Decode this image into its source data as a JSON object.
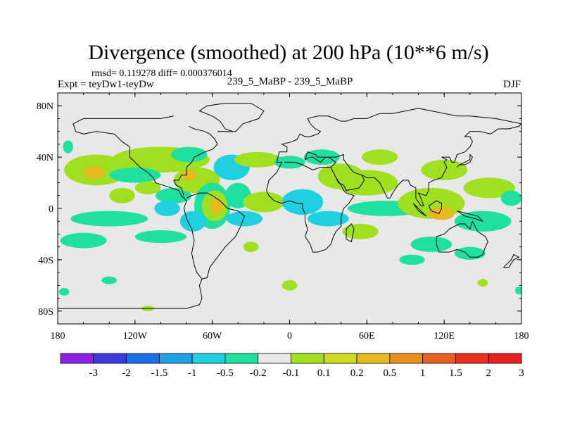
{
  "chart_data": {
    "type": "heatmap",
    "title": "Divergence (smoothed) at 200 hPa (10**6 m/s)",
    "stats_text": "rmsd= 0.119278 diff= 0.000376014",
    "expt_text": "Expt = teyDw1-teyDw",
    "case_text": "239_5_MaBP - 239_5_MaBP",
    "season": "DJF",
    "x_ticks": [
      {
        "value": -180,
        "label": "180"
      },
      {
        "value": -120,
        "label": "120W"
      },
      {
        "value": -60,
        "label": "60W"
      },
      {
        "value": 0,
        "label": "0"
      },
      {
        "value": 60,
        "label": "60E"
      },
      {
        "value": 120,
        "label": "120E"
      },
      {
        "value": 180,
        "label": "180"
      }
    ],
    "y_ticks": [
      {
        "value": 80,
        "label": "80N"
      },
      {
        "value": 40,
        "label": "40N"
      },
      {
        "value": 0,
        "label": "0"
      },
      {
        "value": -40,
        "label": "40S"
      },
      {
        "value": -80,
        "label": "80S"
      }
    ],
    "xlim": [
      -180,
      180
    ],
    "ylim": [
      -90,
      90
    ],
    "colorbar": {
      "colors": [
        "#8b1fe8",
        "#3a3ae0",
        "#1f6fe8",
        "#1fa0e8",
        "#1fd0e0",
        "#1fe0a0",
        "#e8e8e8",
        "#a0e01f",
        "#d0d81f",
        "#e8b81f",
        "#e8901f",
        "#e8601f",
        "#e8301f",
        "#e81f1f"
      ],
      "labels": [
        "-3",
        "-2",
        "-1.5",
        "-1",
        "-0.5",
        "-0.2",
        "-0.1",
        "0.1",
        "0.2",
        "0.5",
        "1",
        "1.5",
        "2",
        "3"
      ]
    },
    "blobs": [
      {
        "lon": -172,
        "lat": 48,
        "rlon": 4,
        "rlat": 5,
        "level": "green"
      },
      {
        "lon": -150,
        "lat": 30,
        "rlon": 25,
        "rlat": 12,
        "level": "yellow"
      },
      {
        "lon": -152,
        "lat": 28,
        "rlon": 8,
        "rlat": 5,
        "level": "orange"
      },
      {
        "lon": -100,
        "lat": 38,
        "rlon": 38,
        "rlat": 10,
        "level": "yellow"
      },
      {
        "lon": -78,
        "lat": 42,
        "rlon": 14,
        "rlat": 6,
        "level": "green"
      },
      {
        "lon": -120,
        "lat": 26,
        "rlon": 20,
        "rlat": 6,
        "level": "green"
      },
      {
        "lon": -130,
        "lat": 10,
        "rlon": 10,
        "rlat": 6,
        "level": "yellow"
      },
      {
        "lon": -110,
        "lat": 16,
        "rlon": 10,
        "rlat": 5,
        "level": "yellow"
      },
      {
        "lon": -90,
        "lat": 10,
        "rlon": 14,
        "rlat": 6,
        "level": "green"
      },
      {
        "lon": -72,
        "lat": 22,
        "rlon": 18,
        "rlat": 10,
        "level": "yellow"
      },
      {
        "lon": -78,
        "lat": 26,
        "rlon": 6,
        "rlat": 4,
        "level": "orange"
      },
      {
        "lon": -60,
        "lat": 2,
        "rlon": 14,
        "rlat": 18,
        "level": "green"
      },
      {
        "lon": -58,
        "lat": 2,
        "rlon": 10,
        "rlat": 12,
        "level": "yellow"
      },
      {
        "lon": -57,
        "lat": 2,
        "rlon": 5,
        "rlat": 6,
        "level": "orange"
      },
      {
        "lon": -45,
        "lat": 32,
        "rlon": 14,
        "rlat": 10,
        "level": "cyan"
      },
      {
        "lon": -40,
        "lat": 10,
        "rlon": 10,
        "rlat": 10,
        "level": "green"
      },
      {
        "lon": -25,
        "lat": 38,
        "rlon": 18,
        "rlat": 6,
        "level": "yellow"
      },
      {
        "lon": -20,
        "lat": 5,
        "rlon": 16,
        "rlat": 8,
        "level": "yellow"
      },
      {
        "lon": -35,
        "lat": -8,
        "rlon": 14,
        "rlat": 6,
        "level": "cyan"
      },
      {
        "lon": -75,
        "lat": -10,
        "rlon": 10,
        "rlat": 8,
        "level": "cyan"
      },
      {
        "lon": -95,
        "lat": 0,
        "rlon": 10,
        "rlat": 6,
        "level": "cyan"
      },
      {
        "lon": -140,
        "lat": -8,
        "rlon": 30,
        "rlat": 6,
        "level": "green"
      },
      {
        "lon": -160,
        "lat": -25,
        "rlon": 18,
        "rlat": 6,
        "level": "green"
      },
      {
        "lon": -100,
        "lat": -22,
        "rlon": 20,
        "rlat": 5,
        "level": "green"
      },
      {
        "lon": -30,
        "lat": -30,
        "rlon": 6,
        "rlat": 4,
        "level": "yellow"
      },
      {
        "lon": 0,
        "lat": 36,
        "rlon": 12,
        "rlat": 5,
        "level": "green"
      },
      {
        "lon": 25,
        "lat": 40,
        "rlon": 14,
        "rlat": 6,
        "level": "green"
      },
      {
        "lon": 40,
        "lat": 25,
        "rlon": 18,
        "rlat": 10,
        "level": "yellow"
      },
      {
        "lon": 10,
        "lat": 5,
        "rlon": 16,
        "rlat": 10,
        "level": "cyan"
      },
      {
        "lon": 30,
        "lat": -8,
        "rlon": 16,
        "rlat": 6,
        "level": "cyan"
      },
      {
        "lon": 60,
        "lat": 20,
        "rlon": 24,
        "rlat": 10,
        "level": "yellow"
      },
      {
        "lon": 70,
        "lat": 40,
        "rlon": 14,
        "rlat": 6,
        "level": "yellow"
      },
      {
        "lon": 75,
        "lat": 0,
        "rlon": 30,
        "rlat": 6,
        "level": "green"
      },
      {
        "lon": 110,
        "lat": 4,
        "rlon": 26,
        "rlat": 12,
        "level": "yellow"
      },
      {
        "lon": 118,
        "lat": -4,
        "rlon": 10,
        "rlat": 5,
        "level": "orange"
      },
      {
        "lon": 120,
        "lat": 30,
        "rlon": 18,
        "rlat": 8,
        "level": "yellow"
      },
      {
        "lon": 155,
        "lat": 16,
        "rlon": 20,
        "rlat": 8,
        "level": "yellow"
      },
      {
        "lon": 150,
        "lat": -10,
        "rlon": 22,
        "rlat": 8,
        "level": "green"
      },
      {
        "lon": 172,
        "lat": 8,
        "rlon": 8,
        "rlat": 6,
        "level": "green"
      },
      {
        "lon": 55,
        "lat": -18,
        "rlon": 14,
        "rlat": 6,
        "level": "yellow"
      },
      {
        "lon": 110,
        "lat": -28,
        "rlon": 16,
        "rlat": 6,
        "level": "green"
      },
      {
        "lon": 95,
        "lat": -40,
        "rlon": 10,
        "rlat": 4,
        "level": "green"
      },
      {
        "lon": 140,
        "lat": -35,
        "rlon": 12,
        "rlat": 5,
        "level": "green"
      },
      {
        "lon": 150,
        "lat": -58,
        "rlon": 4,
        "rlat": 3,
        "level": "yellow"
      },
      {
        "lon": 0,
        "lat": -60,
        "rlon": 6,
        "rlat": 4,
        "level": "yellow"
      },
      {
        "lon": -140,
        "lat": -56,
        "rlon": 6,
        "rlat": 3,
        "level": "green"
      },
      {
        "lon": -175,
        "lat": -65,
        "rlon": 4,
        "rlat": 3,
        "level": "green"
      },
      {
        "lon": 178,
        "lat": -64,
        "rlon": 3,
        "rlat": 3,
        "level": "green"
      },
      {
        "lon": -110,
        "lat": -78,
        "rlon": 5,
        "rlat": 2,
        "level": "yellow"
      }
    ],
    "level_colors": {
      "cyan": "#1fd0e0",
      "green": "#1fe0a0",
      "yellow": "#a0e01f",
      "orange": "#e8b81f"
    },
    "field_background": "#e8e8e8",
    "coast_color": "#000000"
  }
}
